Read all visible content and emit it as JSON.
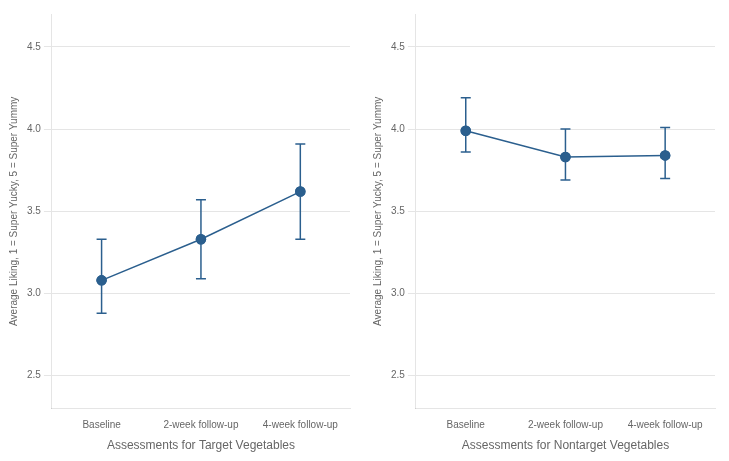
{
  "chart_data": [
    {
      "type": "line",
      "xlabel": "Assessments for Target Vegetables",
      "ylabel": "Average Liking, 1 = Super Yucky, 5 = Super Yummy",
      "categories": [
        "Baseline",
        "2-week follow-up",
        "4-week follow-up"
      ],
      "values": [
        3.08,
        3.33,
        3.62
      ],
      "error_lower": [
        0.2,
        0.24,
        0.29
      ],
      "error_upper": [
        0.25,
        0.24,
        0.29
      ],
      "color": "#2b5f8e",
      "marker": "circle",
      "ylim": [
        2.3,
        4.7
      ],
      "yticks": [
        2.5,
        {
          "value": 3.0,
          "label": "3.0"
        },
        3.5,
        {
          "value": 4.0,
          "label": "4.0"
        },
        4.5
      ],
      "grid": true
    },
    {
      "type": "line",
      "xlabel": "Assessments for Nontarget Vegetables",
      "ylabel": "Average Liking, 1 = Super Yucky, 5 = Super Yummy",
      "categories": [
        "Baseline",
        "2-week follow-up",
        "4-week follow-up"
      ],
      "values": [
        3.99,
        3.83,
        3.84
      ],
      "error_lower": [
        0.13,
        0.14,
        0.14
      ],
      "error_upper": [
        0.2,
        0.17,
        0.17
      ],
      "color": "#2b5f8e",
      "marker": "circle",
      "ylim": [
        2.3,
        4.7
      ],
      "yticks": [
        2.5,
        {
          "value": 3.0,
          "label": "3.0"
        },
        3.5,
        {
          "value": 4.0,
          "label": "4.0"
        },
        4.5
      ],
      "grid": true
    }
  ]
}
